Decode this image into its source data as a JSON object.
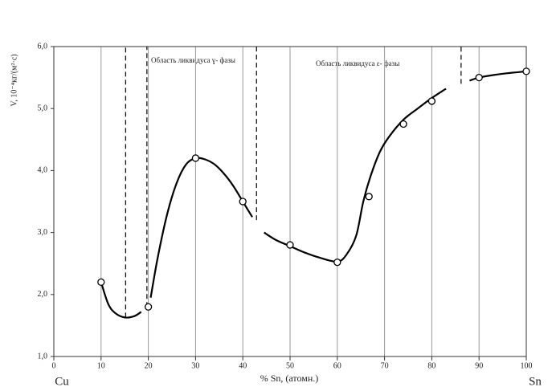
{
  "chart_data": {
    "type": "scatter",
    "ylabel": "V, 10⁻⁴кг/(м²·с)",
    "xlabel": "% Sn, (атомн.)",
    "left_label": "Cu",
    "right_label": "Sn",
    "annotations": [
      "Область ликвидуса ɣ- фазы",
      "Область ликвидуса ε- фазы"
    ],
    "x": [
      10,
      20,
      30,
      40,
      50,
      60,
      66.7,
      74,
      80,
      90,
      100
    ],
    "values": [
      2.2,
      1.8,
      4.2,
      3.5,
      2.8,
      2.52,
      3.58,
      4.75,
      5.12,
      5.5,
      5.6
    ],
    "curve": {
      "x": [
        10,
        11.5,
        13,
        15,
        17,
        18.5,
        null,
        20.5,
        22,
        24,
        26,
        28,
        30,
        32,
        34,
        36,
        38,
        40,
        42,
        null,
        44.5,
        47,
        50,
        53,
        56,
        60,
        62,
        64,
        65.5,
        67,
        69,
        71,
        74,
        77,
        80,
        83,
        null,
        88,
        90,
        93,
        96,
        100
      ],
      "y": [
        2.2,
        1.85,
        1.7,
        1.63,
        1.65,
        1.72,
        null,
        1.95,
        2.6,
        3.3,
        3.8,
        4.1,
        4.2,
        4.18,
        4.1,
        3.95,
        3.75,
        3.5,
        3.25,
        null,
        3.0,
        2.88,
        2.78,
        2.68,
        2.6,
        2.53,
        2.65,
        2.95,
        3.5,
        3.9,
        4.3,
        4.55,
        4.82,
        5.0,
        5.17,
        5.32,
        null,
        5.45,
        5.5,
        5.54,
        5.57,
        5.6
      ]
    },
    "dashed_lines": [
      {
        "x": 15.2,
        "y_range": [
          1.63,
          6
        ]
      },
      {
        "x": 19.7,
        "y_range": [
          1.8,
          6
        ]
      },
      {
        "x": 42.9,
        "y_range": [
          3.2,
          6
        ]
      },
      {
        "x": 86.2,
        "y_range": [
          5.4,
          6
        ]
      }
    ],
    "xlim": [
      0,
      100
    ],
    "ylim": [
      1,
      6
    ],
    "xticks": [
      0,
      10,
      20,
      30,
      40,
      50,
      60,
      70,
      80,
      90,
      100
    ],
    "yticks": [
      {
        "value": 1,
        "label": "1,0"
      },
      {
        "value": 2,
        "label": "2,0"
      },
      {
        "value": 3,
        "label": "3,0"
      },
      {
        "value": 4,
        "label": "4,0"
      },
      {
        "value": 5,
        "label": "5,0"
      },
      {
        "value": 6,
        "label": "6,0"
      }
    ],
    "grid": true
  }
}
